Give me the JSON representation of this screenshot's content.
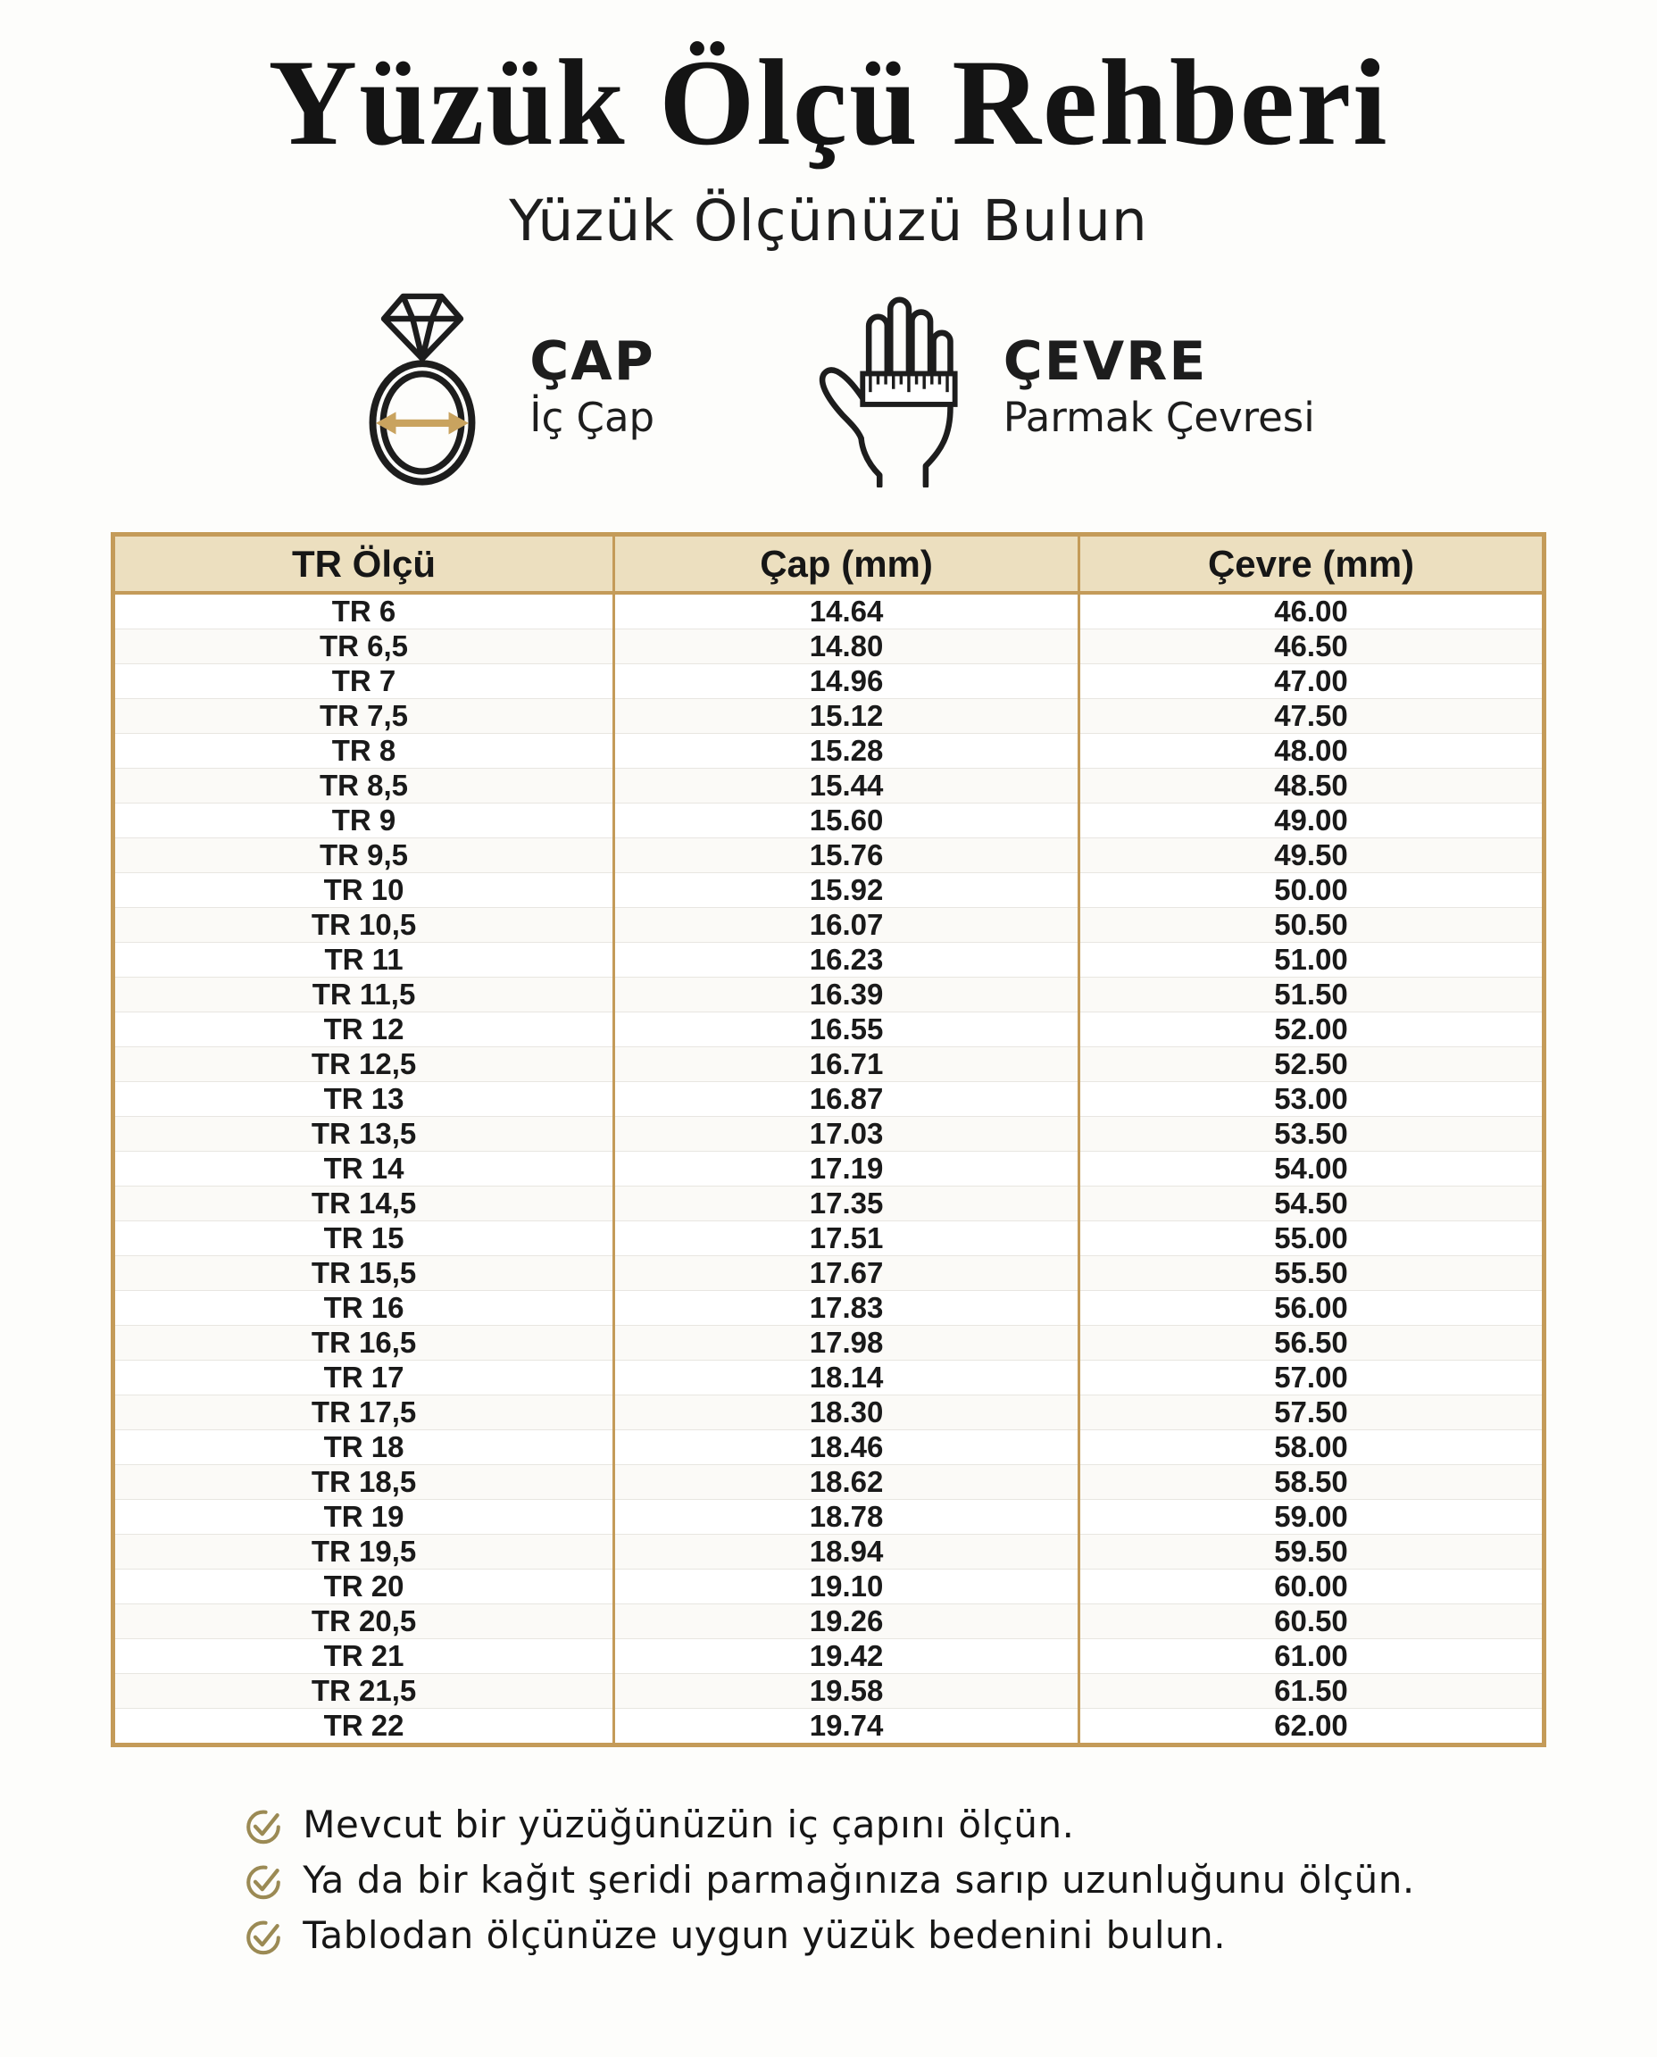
{
  "header": {
    "title": "Yüzük Ölçü Rehberi",
    "subtitle": "Yüzük Ölçünüzü Bulun"
  },
  "legend": {
    "diameter": {
      "icon": "ring-diameter-icon",
      "label": "ÇAP",
      "sublabel": "İç Çap"
    },
    "circumference": {
      "icon": "hand-ruler-icon",
      "label": "ÇEVRE",
      "sublabel": "Parmak Çevresi"
    }
  },
  "table": {
    "headers": [
      "TR Ölçü",
      "Çap (mm)",
      "Çevre (mm)"
    ],
    "rows": [
      [
        "TR 6",
        "14.64",
        "46.00"
      ],
      [
        "TR 6,5",
        "14.80",
        "46.50"
      ],
      [
        "TR 7",
        "14.96",
        "47.00"
      ],
      [
        "TR 7,5",
        "15.12",
        "47.50"
      ],
      [
        "TR 8",
        "15.28",
        "48.00"
      ],
      [
        "TR 8,5",
        "15.44",
        "48.50"
      ],
      [
        "TR 9",
        "15.60",
        "49.00"
      ],
      [
        "TR 9,5",
        "15.76",
        "49.50"
      ],
      [
        "TR 10",
        "15.92",
        "50.00"
      ],
      [
        "TR 10,5",
        "16.07",
        "50.50"
      ],
      [
        "TR 11",
        "16.23",
        "51.00"
      ],
      [
        "TR 11,5",
        "16.39",
        "51.50"
      ],
      [
        "TR 12",
        "16.55",
        "52.00"
      ],
      [
        "TR 12,5",
        "16.71",
        "52.50"
      ],
      [
        "TR 13",
        "16.87",
        "53.00"
      ],
      [
        "TR 13,5",
        "17.03",
        "53.50"
      ],
      [
        "TR 14",
        "17.19",
        "54.00"
      ],
      [
        "TR 14,5",
        "17.35",
        "54.50"
      ],
      [
        "TR 15",
        "17.51",
        "55.00"
      ],
      [
        "TR 15,5",
        "17.67",
        "55.50"
      ],
      [
        "TR 16",
        "17.83",
        "56.00"
      ],
      [
        "TR 16,5",
        "17.98",
        "56.50"
      ],
      [
        "TR 17",
        "18.14",
        "57.00"
      ],
      [
        "TR 17,5",
        "18.30",
        "57.50"
      ],
      [
        "TR 18",
        "18.46",
        "58.00"
      ],
      [
        "TR 18,5",
        "18.62",
        "58.50"
      ],
      [
        "TR 19",
        "18.78",
        "59.00"
      ],
      [
        "TR 19,5",
        "18.94",
        "59.50"
      ],
      [
        "TR 20",
        "19.10",
        "60.00"
      ],
      [
        "TR 20,5",
        "19.26",
        "60.50"
      ],
      [
        "TR 21",
        "19.42",
        "61.00"
      ],
      [
        "TR 21,5",
        "19.58",
        "61.50"
      ],
      [
        "TR 22",
        "19.74",
        "62.00"
      ]
    ]
  },
  "notes": [
    {
      "icon": "check-circle-icon",
      "text": "Mevcut bir yüzüğünüzün iç çapını ölçün."
    },
    {
      "icon": "check-circle-icon",
      "text": "Ya da bir kağıt şeridi parmağınıza sarıp uzunluğunu ölçün."
    },
    {
      "icon": "check-circle-icon",
      "text": "Tablodan ölçünüze uygun yüzük bedenini bulun."
    }
  ],
  "colors": {
    "accent_gold": "#c49b59",
    "header_bg": "#ecdfbf",
    "check_gold": "#9b8a54",
    "arrow_gold": "#c9a35f",
    "ink": "#1d1d1d",
    "row_divider": "#e8e6e1",
    "page_bg": "#fdfdfb"
  }
}
